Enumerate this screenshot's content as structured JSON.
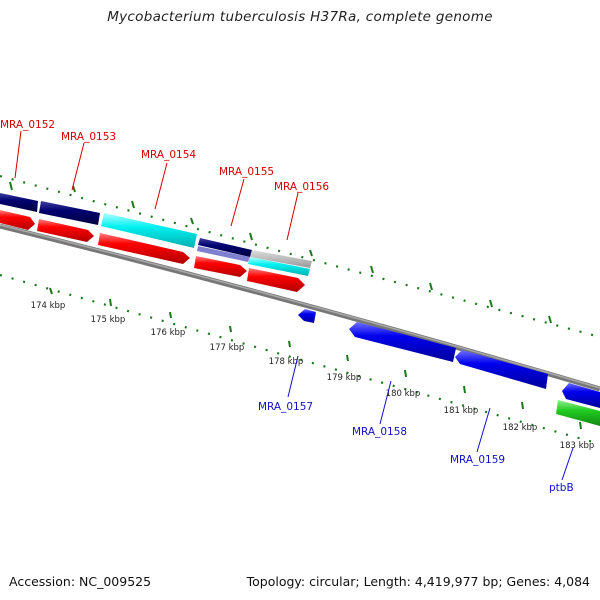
{
  "title": "Mycobacterium tuberculosis H37Ra, complete genome",
  "footer": {
    "accession": "Accession: NC_009525",
    "summary": "Topology: circular; Length: 4,419,977 bp; Genes: 4,084"
  },
  "colors": {
    "backbone": "#7a7a7a",
    "forward_cds": "#ff0000",
    "reverse_cds": "#0000ee",
    "navy_feature": "#000070",
    "cyan_feature": "#00ffff",
    "green_feature": "#22cc22",
    "tick": "#1a7a1a",
    "label_red": "#d40000",
    "label_blue": "#1010c8"
  },
  "scale_labels": [
    "174 kbp",
    "175 kbp",
    "176 kbp",
    "177 kbp",
    "178 kbp",
    "179 kbp",
    "180 kbp",
    "181 kbp",
    "182 kbp",
    "183 kbp"
  ],
  "gene_labels_forward": [
    "MRA_0152",
    "MRA_0153",
    "MRA_0154",
    "MRA_0155",
    "MRA_0156"
  ],
  "gene_labels_reverse": [
    "MRA_0157",
    "MRA_0158",
    "MRA_0159",
    "ptbB"
  ]
}
